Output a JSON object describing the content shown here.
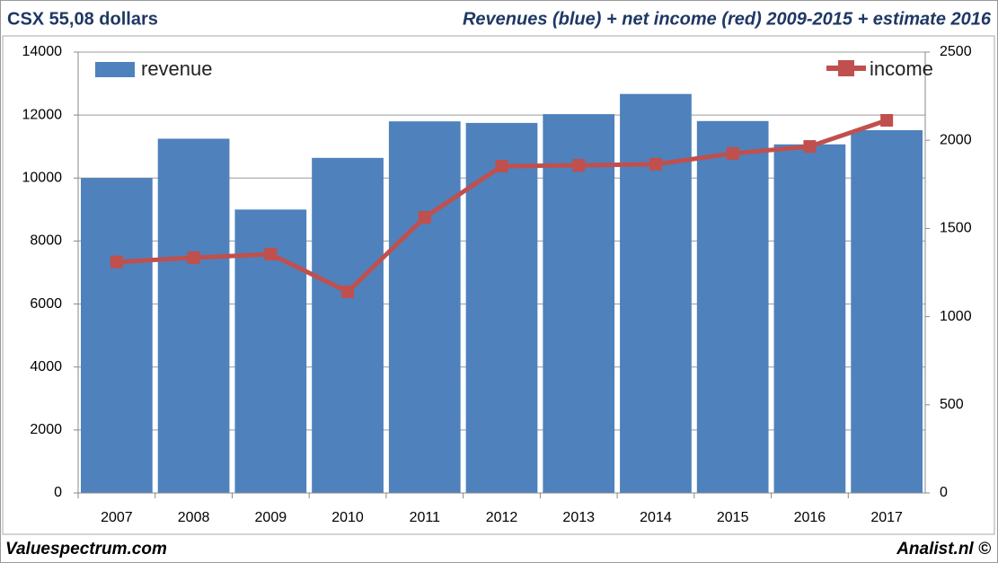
{
  "chart_data": {
    "type": "bar_line",
    "subtitle": "CSX 55,08 dollars",
    "title": "Revenues (blue) + net income (red) 2009-2015 + estimate 2016",
    "annotations": [
      "Valuespectrum.com",
      "Analist.nl ©"
    ],
    "categories": [
      "2007",
      "2008",
      "2009",
      "2010",
      "2011",
      "2012",
      "2013",
      "2014",
      "2015",
      "2016",
      "2017"
    ],
    "series": [
      {
        "name": "revenue",
        "color": "#4f81bd",
        "values": [
          10000,
          11250,
          9000,
          10640,
          11800,
          11750,
          12030,
          12670,
          11810,
          11070,
          11520
        ]
      },
      {
        "name": "income",
        "color": "#c0504d",
        "axis": "y2",
        "values": [
          1310,
          1334,
          1354,
          1141,
          1563,
          1853,
          1858,
          1864,
          1925,
          1965,
          2113
        ]
      }
    ],
    "ylim": [
      0,
      14000
    ],
    "yticks": [
      0,
      2000,
      4000,
      6000,
      8000,
      10000,
      12000,
      14000
    ],
    "y2lim": [
      0,
      2500
    ],
    "y2ticks": [
      0,
      500,
      1000,
      1500,
      2000,
      2500
    ],
    "grid": true
  }
}
